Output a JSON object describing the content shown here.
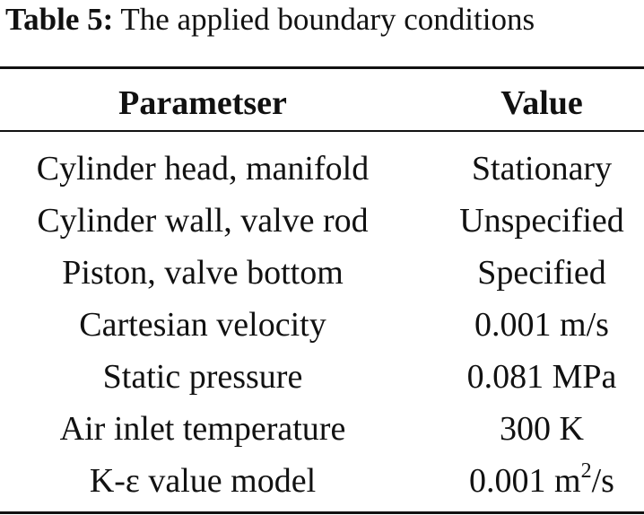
{
  "caption": {
    "label": "Table 5:",
    "text": "The applied boundary conditions"
  },
  "table": {
    "headers": {
      "parameter": "Parametser",
      "value": "Value"
    },
    "rows": [
      {
        "parameter": "Cylinder head, manifold",
        "value": "Stationary"
      },
      {
        "parameter": "Cylinder wall, valve rod",
        "value": "Unspecified"
      },
      {
        "parameter": "Piston, valve bottom",
        "value": "Specified"
      },
      {
        "parameter": "Cartesian velocity",
        "value": "0.001 m/s"
      },
      {
        "parameter": "Static pressure",
        "value": "0.081 MPa"
      },
      {
        "parameter": "Air inlet temperature",
        "value": "300 K"
      },
      {
        "parameter": "K-ε value model",
        "value": "0.001 m",
        "value_sup": "2",
        "value_suffix": "/s"
      }
    ]
  }
}
